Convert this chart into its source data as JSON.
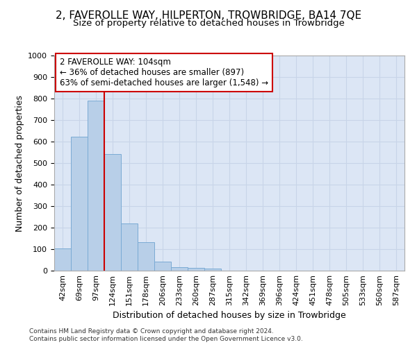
{
  "title": "2, FAVEROLLE WAY, HILPERTON, TROWBRIDGE, BA14 7QE",
  "subtitle": "Size of property relative to detached houses in Trowbridge",
  "xlabel": "Distribution of detached houses by size in Trowbridge",
  "ylabel": "Number of detached properties",
  "footer_line1": "Contains HM Land Registry data © Crown copyright and database right 2024.",
  "footer_line2": "Contains public sector information licensed under the Open Government Licence v3.0.",
  "bin_labels": [
    "42sqm",
    "69sqm",
    "97sqm",
    "124sqm",
    "151sqm",
    "178sqm",
    "206sqm",
    "233sqm",
    "260sqm",
    "287sqm",
    "315sqm",
    "342sqm",
    "369sqm",
    "396sqm",
    "424sqm",
    "451sqm",
    "478sqm",
    "505sqm",
    "533sqm",
    "560sqm",
    "587sqm"
  ],
  "bar_heights": [
    103,
    622,
    790,
    543,
    220,
    133,
    42,
    17,
    13,
    10,
    0,
    0,
    0,
    0,
    0,
    0,
    0,
    0,
    0,
    0,
    0
  ],
  "bar_color": "#b8cfe8",
  "bar_edge_color": "#7aaad4",
  "grid_color": "#c8d4e8",
  "background_color": "#dce6f5",
  "annotation_line1": "2 FAVEROLLE WAY: 104sqm",
  "annotation_line2": "← 36% of detached houses are smaller (897)",
  "annotation_line3": "63% of semi-detached houses are larger (1,548) →",
  "annotation_box_color": "#ffffff",
  "annotation_box_edge": "#cc0000",
  "vline_color": "#cc0000",
  "vline_x_index": 2.5,
  "ylim": [
    0,
    1000
  ],
  "yticks": [
    0,
    100,
    200,
    300,
    400,
    500,
    600,
    700,
    800,
    900,
    1000
  ],
  "title_fontsize": 11,
  "subtitle_fontsize": 9.5,
  "ylabel_fontsize": 9,
  "xlabel_fontsize": 9,
  "tick_fontsize": 8,
  "annotation_fontsize": 8.5
}
